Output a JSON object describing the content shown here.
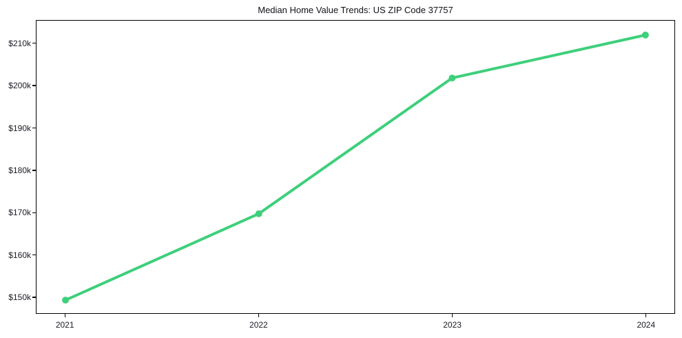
{
  "chart_data": {
    "type": "line",
    "title": "Median Home Value Trends: US ZIP Code 37757",
    "x": [
      2021,
      2022,
      2023,
      2024
    ],
    "x_tick_labels": [
      "2021",
      "2022",
      "2023",
      "2024"
    ],
    "series": [
      {
        "name": "Median Home Value",
        "values": [
          149200,
          169700,
          201900,
          212100
        ],
        "color": "#3ecf7b",
        "marker": "circle",
        "line_width": 4,
        "marker_radius": 5
      }
    ],
    "y_ticks": [
      150000,
      160000,
      170000,
      180000,
      190000,
      200000,
      210000
    ],
    "y_tick_labels": [
      "$150k",
      "$160k",
      "$170k",
      "$180k",
      "$190k",
      "$200k",
      "$210k"
    ],
    "xlim": [
      2020.85,
      2024.15
    ],
    "ylim": [
      146100,
      215500
    ],
    "grid": false,
    "legend_position": "none",
    "axis_color": "#000000",
    "tick_label_color": "#1a1a24",
    "background_color": "#ffffff"
  }
}
